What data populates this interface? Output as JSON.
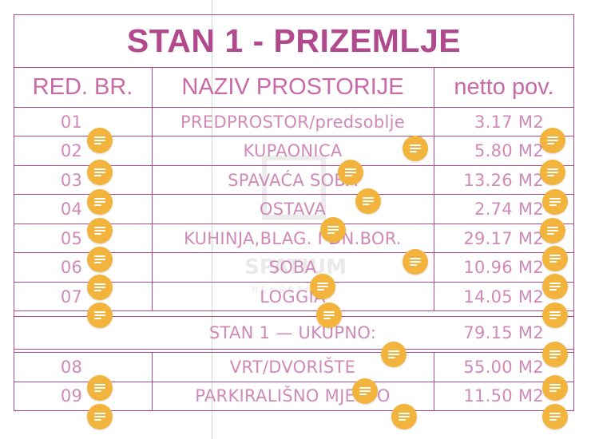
{
  "title": "STAN 1 - PRIZEMLJE",
  "headers": {
    "number": "RED. BR.",
    "name": "NAZIV PROSTORIJE",
    "area": "netto pov."
  },
  "rows": [
    {
      "number": "01",
      "name": "PREDPROSTOR/predsoblje",
      "area": "3.17 M2"
    },
    {
      "number": "02",
      "name": "KUPAONICA",
      "area": "5.80 M2"
    },
    {
      "number": "03",
      "name": "SPAVAĆA SOBA",
      "area": "13.26 M2"
    },
    {
      "number": "04",
      "name": "OSTAVA",
      "area": "2.74 M2"
    },
    {
      "number": "05",
      "name": "KUHINJA,BLAG. I DN.BOR.",
      "area": "29.17 M2"
    },
    {
      "number": "06",
      "name": "SOBA",
      "area": "10.96 M2"
    },
    {
      "number": "07",
      "name": "LOGGIA",
      "area": "14.05 M2"
    }
  ],
  "total": {
    "label": "STAN 1 — UKUPNO:",
    "area": "79.15 M2"
  },
  "extra_rows": [
    {
      "number": "08",
      "name": "VRT/DVORIŠTE",
      "area": "55.00 M2"
    },
    {
      "number": "09",
      "name": "PARKIRALIŠNO MJESTO",
      "area": "11.50 M2"
    }
  ],
  "watermark": {
    "text": "SPATIUM",
    "sub": "NEKRETNINE"
  },
  "icons": {
    "annotation": "comment-note-icon"
  },
  "colors": {
    "text": "#b04a8c",
    "light_text": "#d08ab7",
    "marker": "#f3b43e"
  }
}
